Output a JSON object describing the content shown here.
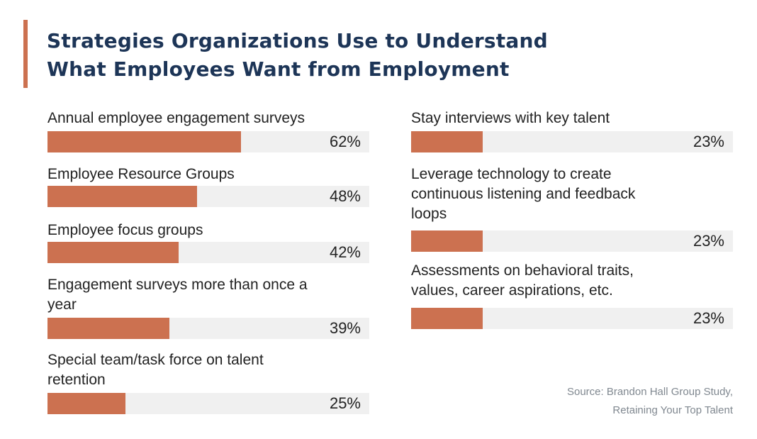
{
  "chart_data": {
    "type": "bar",
    "orientation": "horizontal",
    "title": "Strategies Organizations Use to Understand What Employees Want from Employment",
    "title_lines": [
      "Strategies Organizations Use to Understand",
      "What Employees Want from Employment"
    ],
    "xlim": [
      0,
      100
    ],
    "unit": "%",
    "grid": false,
    "categories": [
      "Annual employee engagement surveys",
      "Employee Resource Groups",
      "Employee focus groups",
      "Engagement surveys more than once a year",
      "Special team/task force on talent retention",
      "Stay interviews with key talent",
      "Leverage technology to create continuous listening and feedback loops",
      "Assessments on behavioral traits, values, career aspirations, etc."
    ],
    "values": [
      62,
      48,
      42,
      39,
      25,
      23,
      23,
      23
    ],
    "data_labels": [
      "62%",
      "48%",
      "42%",
      "39%",
      "25%",
      "23%",
      "23%",
      "23%"
    ],
    "source": [
      "Source: Brandon Hall Group Study,",
      "Retaining Your Top Talent"
    ]
  },
  "colors": {
    "bar": "#cc7150",
    "track": "#f0f0f0",
    "title": "#1d3557",
    "accent": "#cc7150"
  }
}
